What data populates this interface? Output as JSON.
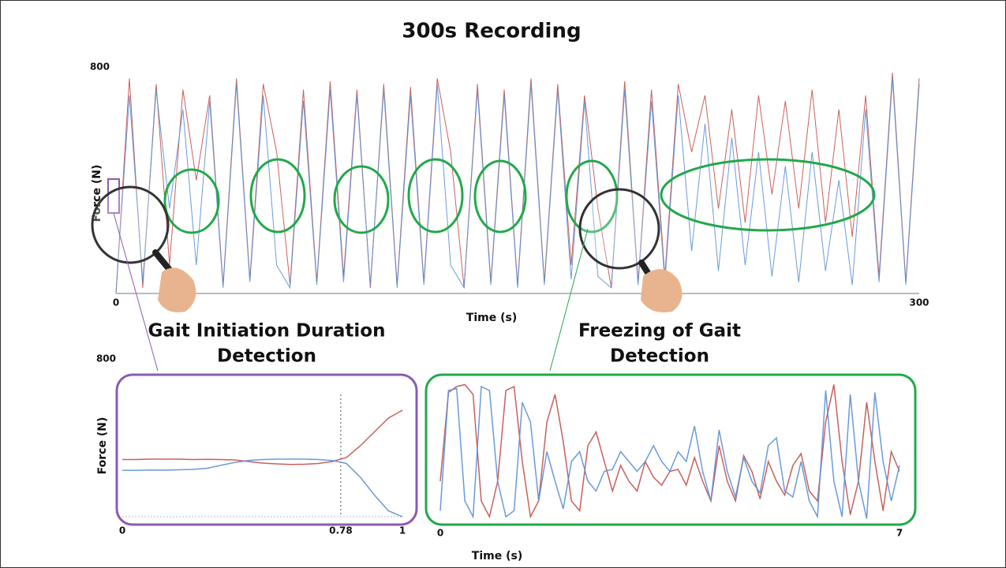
{
  "chart_data": [
    {
      "type": "line",
      "title": "300s Recording",
      "xlabel": "Time (s)",
      "ylabel": "Force (N)",
      "xlim": [
        0,
        300
      ],
      "xticks": [
        0,
        300
      ],
      "ylim": [
        0,
        800
      ],
      "yticks": [
        800
      ],
      "x": [
        0,
        5,
        10,
        15,
        20,
        25,
        30,
        35,
        40,
        45,
        50,
        55,
        60,
        65,
        70,
        75,
        80,
        85,
        90,
        95,
        100,
        105,
        110,
        115,
        120,
        125,
        130,
        135,
        140,
        145,
        150,
        155,
        160,
        165,
        170,
        175,
        180,
        185,
        190,
        195,
        200,
        205,
        210,
        215,
        220,
        225,
        230,
        235,
        240,
        245,
        250,
        255,
        260,
        265,
        270,
        275,
        280,
        285,
        290,
        295,
        300
      ],
      "series": [
        {
          "color": "#c0504d",
          "values": [
            0,
            760,
            20,
            740,
            100,
            720,
            400,
            700,
            30,
            760,
            50,
            740,
            500,
            30,
            720,
            40,
            750,
            60,
            720,
            20,
            740,
            30,
            730,
            40,
            760,
            500,
            20,
            740,
            40,
            720,
            30,
            760,
            40,
            740,
            100,
            700,
            300,
            20,
            750,
            40,
            720,
            60,
            740,
            500,
            700,
            300,
            650,
            250,
            700,
            350,
            680,
            300,
            720,
            250,
            650,
            200,
            700,
            60,
            780,
            40,
            760
          ]
        },
        {
          "color": "#5b8fd4",
          "values": [
            0,
            700,
            40,
            720,
            300,
            650,
            100,
            680,
            20,
            740,
            40,
            700,
            100,
            20,
            680,
            30,
            720,
            40,
            700,
            30,
            720,
            20,
            700,
            30,
            740,
            100,
            20,
            720,
            30,
            700,
            20,
            740,
            30,
            720,
            50,
            680,
            60,
            20,
            720,
            30,
            680,
            40,
            700,
            150,
            600,
            80,
            550,
            100,
            500,
            60,
            450,
            40,
            500,
            80,
            400,
            30,
            650,
            40,
            760,
            30,
            740
          ]
        }
      ]
    },
    {
      "type": "line",
      "ylabel": "Force (N)",
      "xlim": [
        0,
        1
      ],
      "xticks": [
        0,
        0.78,
        1
      ],
      "ylim": [
        0,
        800
      ],
      "yticks": [
        800
      ],
      "x": [
        0,
        0.05,
        0.1,
        0.15,
        0.2,
        0.25,
        0.3,
        0.35,
        0.4,
        0.45,
        0.5,
        0.55,
        0.6,
        0.65,
        0.7,
        0.75,
        0.8,
        0.85,
        0.9,
        0.95,
        1
      ],
      "series": [
        {
          "color": "#c0504d",
          "values": [
            290,
            290,
            292,
            292,
            292,
            290,
            291,
            290,
            288,
            280,
            272,
            268,
            265,
            266,
            270,
            280,
            300,
            360,
            430,
            500,
            540
          ]
        },
        {
          "color": "#5b8fd4",
          "values": [
            235,
            235,
            237,
            236,
            238,
            240,
            245,
            260,
            275,
            285,
            290,
            292,
            292,
            292,
            290,
            285,
            270,
            200,
            110,
            30,
            0
          ]
        }
      ]
    },
    {
      "type": "line",
      "xlabel": "Time (s)",
      "xlim": [
        0,
        7
      ],
      "xticks": [
        0,
        7
      ],
      "ylim": [
        0,
        800
      ],
      "x": [
        0,
        0.125,
        0.25,
        0.375,
        0.5,
        0.625,
        0.75,
        0.875,
        1,
        1.125,
        1.25,
        1.375,
        1.5,
        1.625,
        1.75,
        1.875,
        2,
        2.125,
        2.25,
        2.375,
        2.5,
        2.625,
        2.75,
        2.875,
        3,
        3.125,
        3.25,
        3.375,
        3.5,
        3.625,
        3.75,
        3.875,
        4,
        4.125,
        4.25,
        4.375,
        4.5,
        4.625,
        4.75,
        4.875,
        5,
        5.125,
        5.25,
        5.375,
        5.5,
        5.625,
        5.75,
        5.875,
        6,
        6.125,
        6.25,
        6.375,
        6.5,
        6.625,
        6.75,
        6.875,
        7
      ],
      "series": [
        {
          "color": "#c0504d",
          "values": [
            200,
            650,
            680,
            690,
            640,
            100,
            20,
            200,
            660,
            680,
            300,
            20,
            100,
            500,
            640,
            400,
            100,
            50,
            380,
            450,
            300,
            150,
            280,
            200,
            150,
            300,
            220,
            180,
            250,
            260,
            180,
            320,
            200,
            100,
            380,
            200,
            100,
            330,
            250,
            110,
            300,
            200,
            130,
            280,
            340,
            150,
            100,
            500,
            690,
            300,
            30,
            200,
            600,
            300,
            50,
            350,
            250
          ]
        },
        {
          "color": "#5b8fd4",
          "values": [
            50,
            660,
            670,
            100,
            20,
            680,
            660,
            200,
            20,
            50,
            600,
            500,
            100,
            350,
            200,
            60,
            300,
            350,
            200,
            150,
            250,
            260,
            350,
            300,
            250,
            300,
            380,
            300,
            250,
            350,
            300,
            480,
            250,
            100,
            460,
            250,
            120,
            320,
            200,
            140,
            380,
            420,
            150,
            120,
            300,
            100,
            20,
            660,
            200,
            20,
            640,
            200,
            10,
            650,
            300,
            100,
            280
          ]
        }
      ]
    }
  ],
  "annotations": [
    [
      "Gait Initiation Duration",
      "Detection"
    ],
    [
      "Freezing of Gait",
      "Detection"
    ]
  ]
}
